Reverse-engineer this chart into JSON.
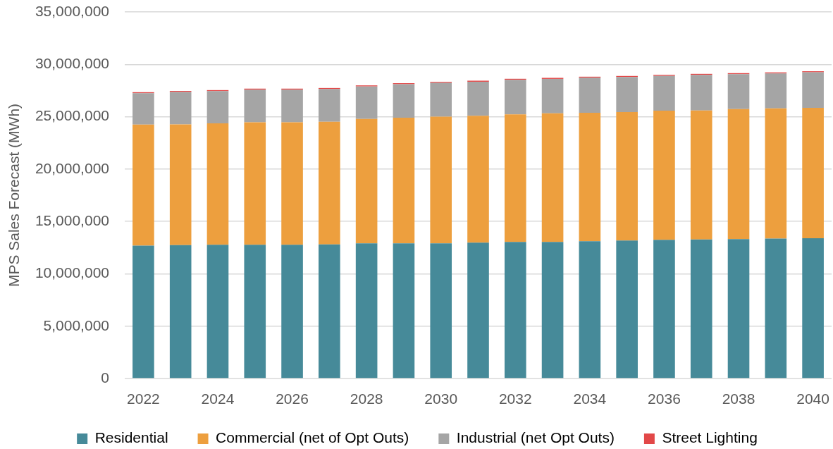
{
  "chart_data": {
    "type": "bar",
    "stacked": true,
    "ylabel": "MPS Sales Forecast (MWh)",
    "categories": [
      "2022",
      null,
      "2024",
      null,
      "2026",
      null,
      "2028",
      null,
      "2030",
      null,
      "2032",
      null,
      "2034",
      null,
      "2036",
      null,
      "2038",
      null,
      "2040"
    ],
    "series": [
      {
        "name": "Residential",
        "color": "#468a99",
        "values": [
          12680000,
          12730000,
          12770000,
          12770000,
          12770000,
          12800000,
          12910000,
          12910000,
          12910000,
          12970000,
          13040000,
          13040000,
          13110000,
          13180000,
          13240000,
          13270000,
          13310000,
          13360000,
          13400000
        ]
      },
      {
        "name": "Commercial (net of Opt Outs)",
        "color": "#ed9f3e",
        "values": [
          11560000,
          11530000,
          11600000,
          11690000,
          11690000,
          11710000,
          11870000,
          12000000,
          12090000,
          12120000,
          12180000,
          12280000,
          12270000,
          12270000,
          12340000,
          12330000,
          12410000,
          12430000,
          12450000
        ]
      },
      {
        "name": "Industrial (net Opt Outs)",
        "color": "#a5a5a5",
        "values": [
          3000000,
          3100000,
          3070000,
          3120000,
          3120000,
          3130000,
          3110000,
          3190000,
          3230000,
          3250000,
          3300000,
          3290000,
          3340000,
          3340000,
          3320000,
          3390000,
          3340000,
          3340000,
          3390000
        ]
      },
      {
        "name": "Street Lighting",
        "color": "#e24848",
        "values": [
          100000,
          100000,
          100000,
          100000,
          100000,
          100000,
          100000,
          100000,
          100000,
          100000,
          100000,
          100000,
          100000,
          100000,
          100000,
          100000,
          100000,
          100000,
          100000
        ]
      }
    ],
    "ylim": [
      0,
      35000000
    ],
    "yticks": [
      0,
      {
        "value": 5000000,
        "label": "5,000,000"
      },
      {
        "value": 10000000,
        "label": "10,000,000"
      },
      {
        "value": 15000000,
        "label": "15,000,000"
      },
      {
        "value": 20000000,
        "label": "20,000,000"
      },
      {
        "value": 25000000,
        "label": "25,000,000"
      },
      {
        "value": 30000000,
        "label": "30,000,000"
      },
      {
        "value": 35000000,
        "label": "35,000,000"
      }
    ],
    "grid": "y",
    "legend": "bottom"
  }
}
